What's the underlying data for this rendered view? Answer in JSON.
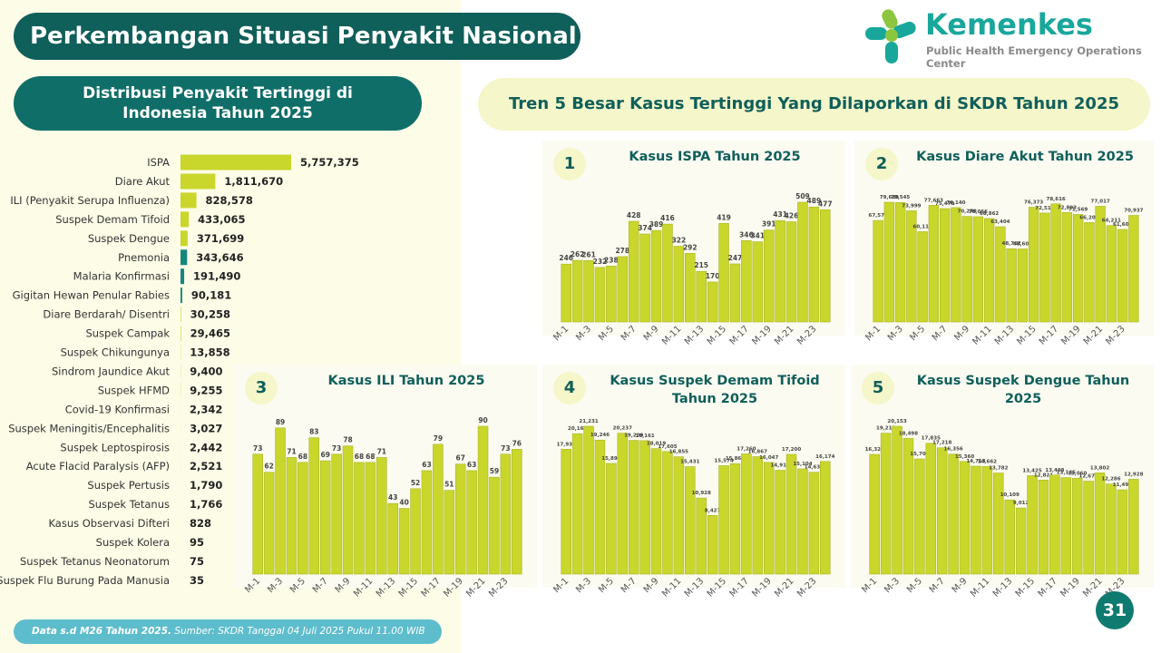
{
  "header": {
    "title": "Perkembangan Situasi Penyakit Nasional",
    "logo_name": "Kemenkes",
    "logo_subtitle": "Public Health Emergency Operations Center"
  },
  "section_title": "Tren 5 Besar Kasus Tertinggi Yang Dilaporkan di SKDR Tahun 2025",
  "chart_data": [
    {
      "type": "hbar",
      "title": "Distribusi Penyakit Tertinggi di Indonesia Tahun 2025",
      "categories": [
        "ISPA",
        "Diare Akut",
        "ILI (Penyakit Serupa Influenza)",
        "Suspek Demam Tifoid",
        "Suspek Dengue",
        "Pnemonia",
        "Malaria Konfirmasi",
        "Gigitan Hewan Penular Rabies",
        "Diare Berdarah/ Disentri",
        "Suspek Campak",
        "Suspek Chikungunya",
        "Sindrom Jaundice Akut",
        "Suspek HFMD",
        "Covid-19 Konfirmasi",
        "Suspek Meningitis/Encephalitis",
        "Suspek Leptospirosis",
        "Acute Flacid Paralysis (AFP)",
        "Suspek Pertusis",
        "Suspek Tetanus",
        "Kasus Observasi Difteri",
        "Suspek Kolera",
        "Suspek Tetanus Neonatorum",
        "Suspek Flu Burung Pada Manusia"
      ],
      "values": [
        5757375,
        1811670,
        828578,
        433065,
        371699,
        343646,
        191490,
        90181,
        30258,
        29465,
        13858,
        9400,
        9255,
        2342,
        3027,
        2442,
        2521,
        1790,
        1766,
        828,
        95,
        75,
        35
      ],
      "value_labels": [
        "5,757,375",
        "1,811,670",
        "828,578",
        "433,065",
        "371,699",
        "343,646",
        "191,490",
        "90,181",
        "30,258",
        "29,465",
        "13,858",
        "9,400",
        "9,255",
        "2,342",
        "3,027",
        "2,442",
        "2,521",
        "1,790",
        "1,766",
        "828",
        "95",
        "75",
        "35"
      ],
      "colors": [
        "#c9d62c",
        "#c9d62c",
        "#c9d62c",
        "#c9d62c",
        "#c9d62c",
        "#14877d",
        "#14877d",
        "#14877d",
        "#c9d62c",
        "#c9d62c",
        "#c9d62c",
        "#c9d62c",
        "#c9d62c",
        "#c9d62c",
        "#c9d62c",
        "#c9d62c",
        "#c9d62c",
        "#c9d62c",
        "#c9d62c",
        "#c9d62c",
        "#c9d62c",
        "#c9d62c",
        "#c9d62c"
      ]
    },
    {
      "type": "bar",
      "badge": 1,
      "title": "Kasus ISPA Tahun 2025",
      "color": "#c9d62c",
      "categories": [
        "M-1",
        null,
        "M-3",
        null,
        "M-5",
        null,
        "M-7",
        null,
        "M-9",
        null,
        "M-11",
        null,
        "M-13",
        null,
        "M-15",
        null,
        "M-17",
        null,
        "M-19",
        null,
        "M-21",
        null,
        "M-23",
        null
      ],
      "values": [
        246,
        262,
        261,
        232,
        238,
        278,
        428,
        374,
        389,
        416,
        322,
        292,
        215,
        170,
        419,
        247,
        346,
        341,
        391,
        431,
        426,
        509,
        489,
        477
      ]
    },
    {
      "type": "bar",
      "badge": 2,
      "title": "Kasus Diare Akut Tahun 2025",
      "color": "#c9d62c",
      "categories": [
        "M-1",
        null,
        "M-3",
        null,
        "M-5",
        null,
        "M-7",
        null,
        "M-9",
        null,
        "M-11",
        null,
        "M-13",
        null,
        "M-15",
        null,
        "M-17",
        null,
        "M-19",
        null,
        "M-21",
        null,
        "M-23",
        null
      ],
      "values": [
        67570,
        79689,
        79545,
        73999,
        60111,
        77663,
        75470,
        76140,
        70270,
        70056,
        68862,
        63404,
        48762,
        48600,
        76373,
        72511,
        78616,
        72893,
        71569,
        66205,
        77017,
        64211,
        61605,
        70937
      ],
      "value_labels": [
        "67,570",
        "79,689",
        "79,545",
        "73,999",
        "60,111",
        "77,663",
        "75,470",
        "76,140",
        "70,270",
        "70,056",
        "68,862",
        "63,404",
        "48,762",
        "48,600",
        "76,373",
        "72,511",
        "78,616",
        "72,893",
        "71,569",
        "66,205",
        "77,017",
        "64,211",
        "61,605",
        "70,937"
      ]
    },
    {
      "type": "bar",
      "badge": 3,
      "title": "Kasus ILI Tahun 2025",
      "color": "#c9d62c",
      "categories": [
        "M-1",
        null,
        "M-3",
        null,
        "M-5",
        null,
        "M-7",
        null,
        "M-9",
        null,
        "M-11",
        null,
        "M-13",
        null,
        "M-15",
        null,
        "M-17",
        null,
        "M-19",
        null,
        "M-21",
        null,
        "M-23",
        null
      ],
      "values": [
        73,
        62,
        89,
        71,
        68,
        83,
        69,
        73,
        78,
        68,
        68,
        71,
        43,
        40,
        52,
        63,
        79,
        51,
        67,
        63,
        90,
        59,
        73,
        76
      ]
    },
    {
      "type": "bar",
      "badge": 4,
      "title": "Kasus Suspek Demam Tifoid Tahun 2025",
      "color": "#c9d62c",
      "categories": [
        "M-1",
        null,
        "M-3",
        null,
        "M-5",
        null,
        "M-7",
        null,
        "M-9",
        null,
        "M-11",
        null,
        "M-13",
        null,
        "M-15",
        null,
        "M-17",
        null,
        "M-19",
        null,
        "M-21",
        null,
        "M-23",
        null
      ],
      "values": [
        17937,
        20166,
        21231,
        19246,
        15897,
        20237,
        19209,
        19161,
        18019,
        17605,
        16855,
        15431,
        10928,
        8427,
        15574,
        15866,
        17260,
        16867,
        16047,
        14914,
        17200,
        15104,
        14630,
        16174
      ],
      "value_labels": [
        "17,937",
        "20,166",
        "21,231",
        "19,246",
        "15,897",
        "20,237",
        "19,209",
        "19,161",
        "18,019",
        "17,605",
        "16,855",
        "15,431",
        "10,928",
        "8,427",
        "15,574",
        "15,866",
        "17,260",
        "16,867",
        "16,047",
        "14,914",
        "17,200",
        "15,104",
        "14,630",
        "16,174"
      ]
    },
    {
      "type": "bar",
      "badge": 5,
      "title": "Kasus Suspek Dengue Tahun 2025",
      "color": "#c9d62c",
      "categories": [
        "M-1",
        null,
        "M-3",
        null,
        "M-5",
        null,
        "M-7",
        null,
        "M-9",
        null,
        "M-11",
        null,
        "M-13",
        null,
        "M-15",
        null,
        "M-17",
        null,
        "M-19",
        null,
        "M-21",
        null,
        "M-23",
        null
      ],
      "values": [
        16320,
        19212,
        20153,
        18498,
        15701,
        17835,
        17218,
        16356,
        15360,
        14713,
        14662,
        13782,
        10109,
        9012,
        13425,
        12821,
        13498,
        13145,
        13060,
        12672,
        13802,
        12286,
        11492,
        12928
      ],
      "value_labels": [
        "16,320",
        "19,212",
        "20,153",
        "18,498",
        "15,701",
        "17,835",
        "17,218",
        "16,356",
        "15,360",
        "14,713",
        "14,662",
        "13,782",
        "10,109",
        "9,012",
        "13,425",
        "12,821",
        "13,498",
        "13,145",
        "13,060",
        "12,672",
        "13,802",
        "12,286",
        "11,492",
        "12,928"
      ]
    }
  ],
  "footer": {
    "note": "Data s.d M26 Tahun 2025.",
    "source": "Sumber: SKDR Tanggal 04 Juli 2025 Pukul 11.00 WIB"
  },
  "page_number": 31
}
